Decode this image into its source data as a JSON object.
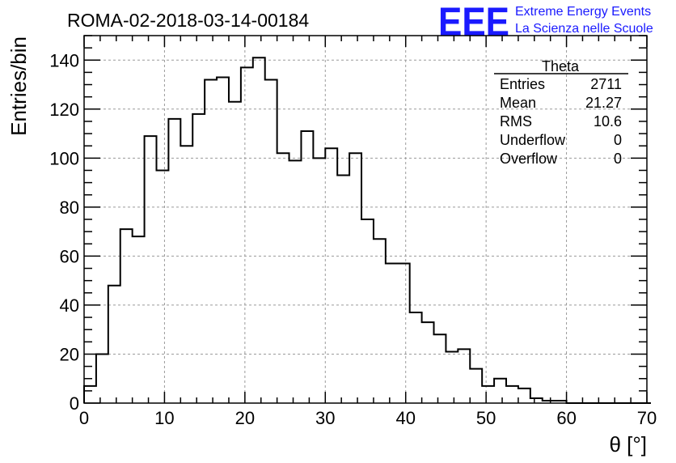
{
  "header": {
    "run_title": "ROMA-02-2018-03-14-00184",
    "logo_letters": "EEE",
    "logo_line1": "Extreme Energy Events",
    "logo_line2": "La Scienza nelle Scuole",
    "logo_color": "#1a1aff"
  },
  "stats_box": {
    "title": "Theta",
    "rows": [
      {
        "label": "Entries",
        "value": "2711"
      },
      {
        "label": "Mean",
        "value": "21.27"
      },
      {
        "label": "RMS",
        "value": "10.6"
      },
      {
        "label": "Underflow",
        "value": "0"
      },
      {
        "label": "Overflow",
        "value": "0"
      }
    ]
  },
  "chart_data": {
    "type": "bar",
    "style": "step-histogram",
    "title": "ROMA-02-2018-03-14-00184",
    "xlabel": "θ [°]",
    "ylabel": "Entries/bin",
    "xlim": [
      0,
      70
    ],
    "ylim": [
      0,
      150
    ],
    "grid": true,
    "x_ticks": [
      0,
      10,
      20,
      30,
      40,
      50,
      60,
      70
    ],
    "y_ticks": [
      0,
      20,
      40,
      60,
      80,
      100,
      120,
      140
    ],
    "bin_width": 1.5,
    "bin_start": 0,
    "values": [
      7,
      20,
      48,
      71,
      68,
      109,
      95,
      116,
      105,
      118,
      132,
      133,
      123,
      137,
      141,
      132,
      102,
      99,
      111,
      100,
      104,
      93,
      102,
      75,
      67,
      57,
      57,
      37,
      33,
      28,
      21,
      22,
      14,
      7,
      10,
      7,
      6,
      2,
      1,
      1,
      0,
      0,
      0,
      0,
      0,
      0,
      0
    ],
    "line_color": "#000000"
  }
}
